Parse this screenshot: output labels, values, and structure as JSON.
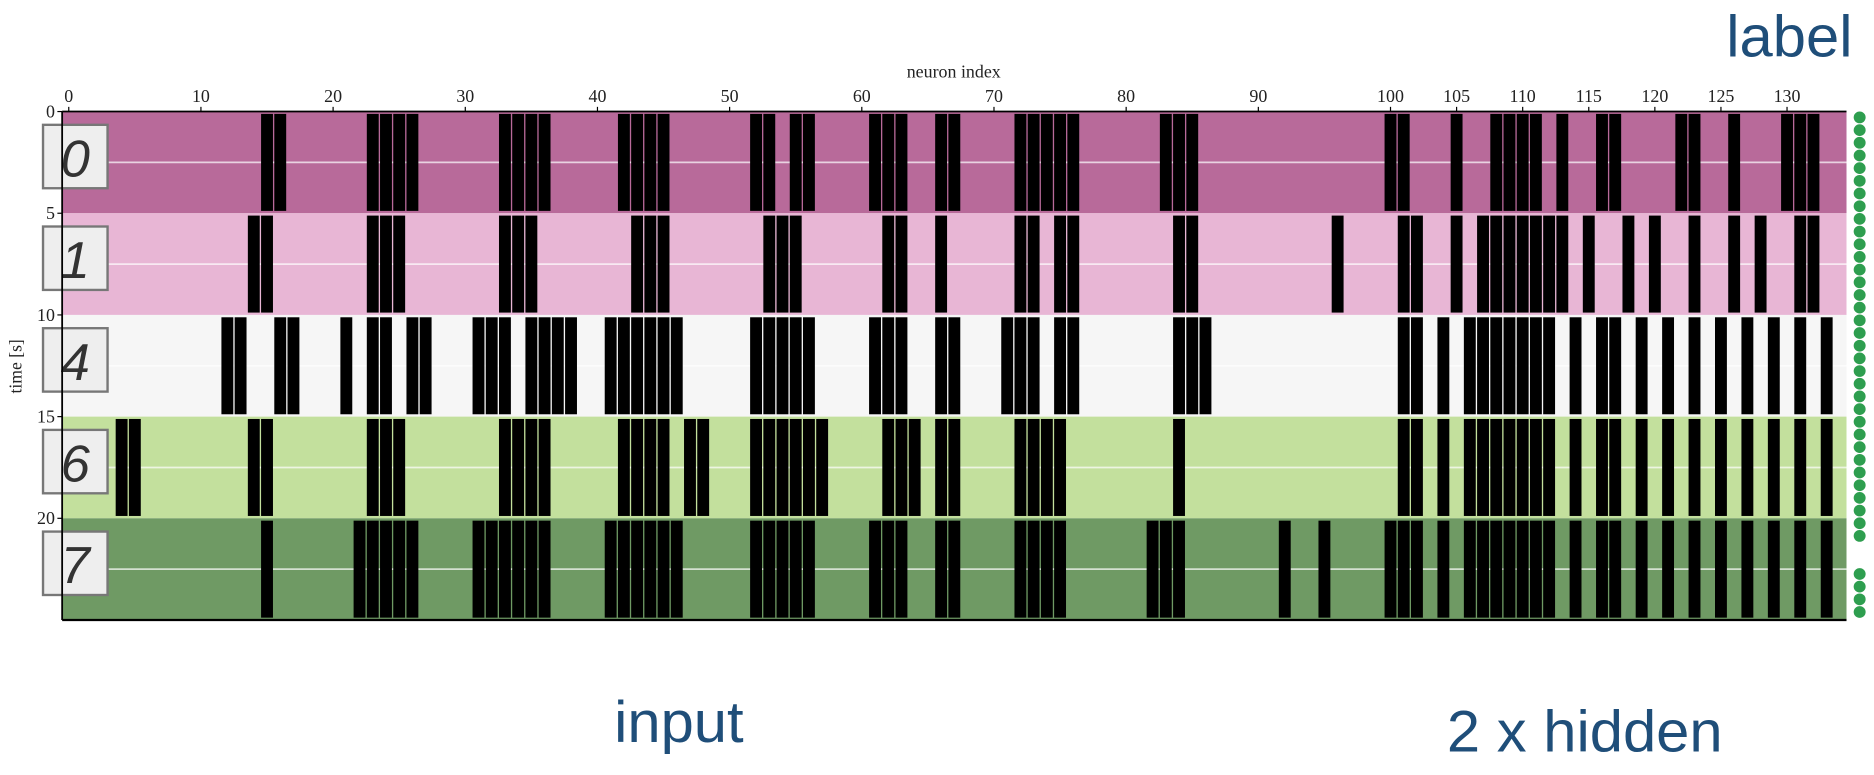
{
  "chart_data": {
    "type": "raster",
    "xlabel": "neuron index",
    "ylabel": "time [s]",
    "annotations": {
      "label": "label",
      "input": "input",
      "hidden": "2 x hidden"
    },
    "xlim": [
      -0.5,
      134.5
    ],
    "ylim": [
      0,
      25
    ],
    "xticks": [
      0,
      10,
      20,
      30,
      40,
      50,
      60,
      70,
      80,
      90,
      100,
      105,
      110,
      115,
      120,
      125,
      130
    ],
    "yticks": [
      0,
      5,
      10,
      15,
      20
    ],
    "bands": [
      {
        "start": 0,
        "end": 5,
        "color": "#b86a9a",
        "digit": "0",
        "neurons": [
          15,
          16,
          23,
          24,
          25,
          26,
          33,
          34,
          35,
          36,
          42,
          43,
          44,
          45,
          52,
          53,
          55,
          56,
          61,
          62,
          63,
          66,
          67,
          72,
          73,
          74,
          75,
          76,
          83,
          84,
          85,
          100,
          101,
          105,
          108,
          109,
          110,
          111,
          113,
          116,
          117,
          122,
          123,
          126,
          130,
          131,
          132
        ]
      },
      {
        "start": 5,
        "end": 10,
        "color": "#e8b6d5",
        "digit": "1",
        "neurons": [
          14,
          15,
          23,
          24,
          25,
          33,
          34,
          35,
          43,
          44,
          45,
          53,
          54,
          55,
          62,
          63,
          66,
          72,
          73,
          75,
          76,
          84,
          85,
          96,
          101,
          102,
          105,
          107,
          108,
          109,
          110,
          111,
          112,
          113,
          115,
          118,
          120,
          123,
          126,
          128,
          131,
          132
        ]
      },
      {
        "start": 10,
        "end": 15,
        "color": "#f6f6f6",
        "digit": "4",
        "neurons": [
          12,
          13,
          16,
          17,
          21,
          23,
          24,
          26,
          27,
          31,
          32,
          33,
          35,
          36,
          37,
          38,
          41,
          42,
          43,
          44,
          45,
          46,
          52,
          53,
          54,
          55,
          56,
          61,
          62,
          63,
          66,
          67,
          71,
          72,
          73,
          75,
          76,
          84,
          85,
          86,
          101,
          102,
          104,
          106,
          107,
          108,
          109,
          110,
          111,
          112,
          114,
          116,
          117,
          119,
          121,
          123,
          125,
          127,
          129,
          131,
          133
        ]
      },
      {
        "start": 15,
        "end": 20,
        "color": "#c3e09d",
        "digit": "6",
        "neurons": [
          4,
          5,
          14,
          15,
          23,
          24,
          25,
          33,
          34,
          35,
          36,
          42,
          43,
          44,
          45,
          47,
          48,
          52,
          53,
          54,
          55,
          56,
          57,
          62,
          63,
          64,
          66,
          67,
          72,
          73,
          74,
          75,
          84,
          101,
          102,
          104,
          106,
          107,
          108,
          109,
          110,
          111,
          112,
          114,
          116,
          117,
          119,
          121,
          123,
          125,
          127,
          129,
          131,
          133
        ]
      },
      {
        "start": 20,
        "end": 25,
        "color": "#6f9a64",
        "digit": "7",
        "neurons": [
          15,
          22,
          23,
          24,
          25,
          26,
          31,
          32,
          33,
          34,
          35,
          36,
          41,
          42,
          43,
          44,
          45,
          46,
          52,
          53,
          54,
          55,
          56,
          61,
          62,
          63,
          66,
          67,
          72,
          73,
          74,
          75,
          82,
          83,
          84,
          92,
          95,
          100,
          101,
          102,
          104,
          106,
          107,
          108,
          109,
          110,
          111,
          112,
          114,
          116,
          117,
          119,
          121,
          123,
          125,
          127,
          129,
          131,
          133
        ]
      }
    ]
  }
}
